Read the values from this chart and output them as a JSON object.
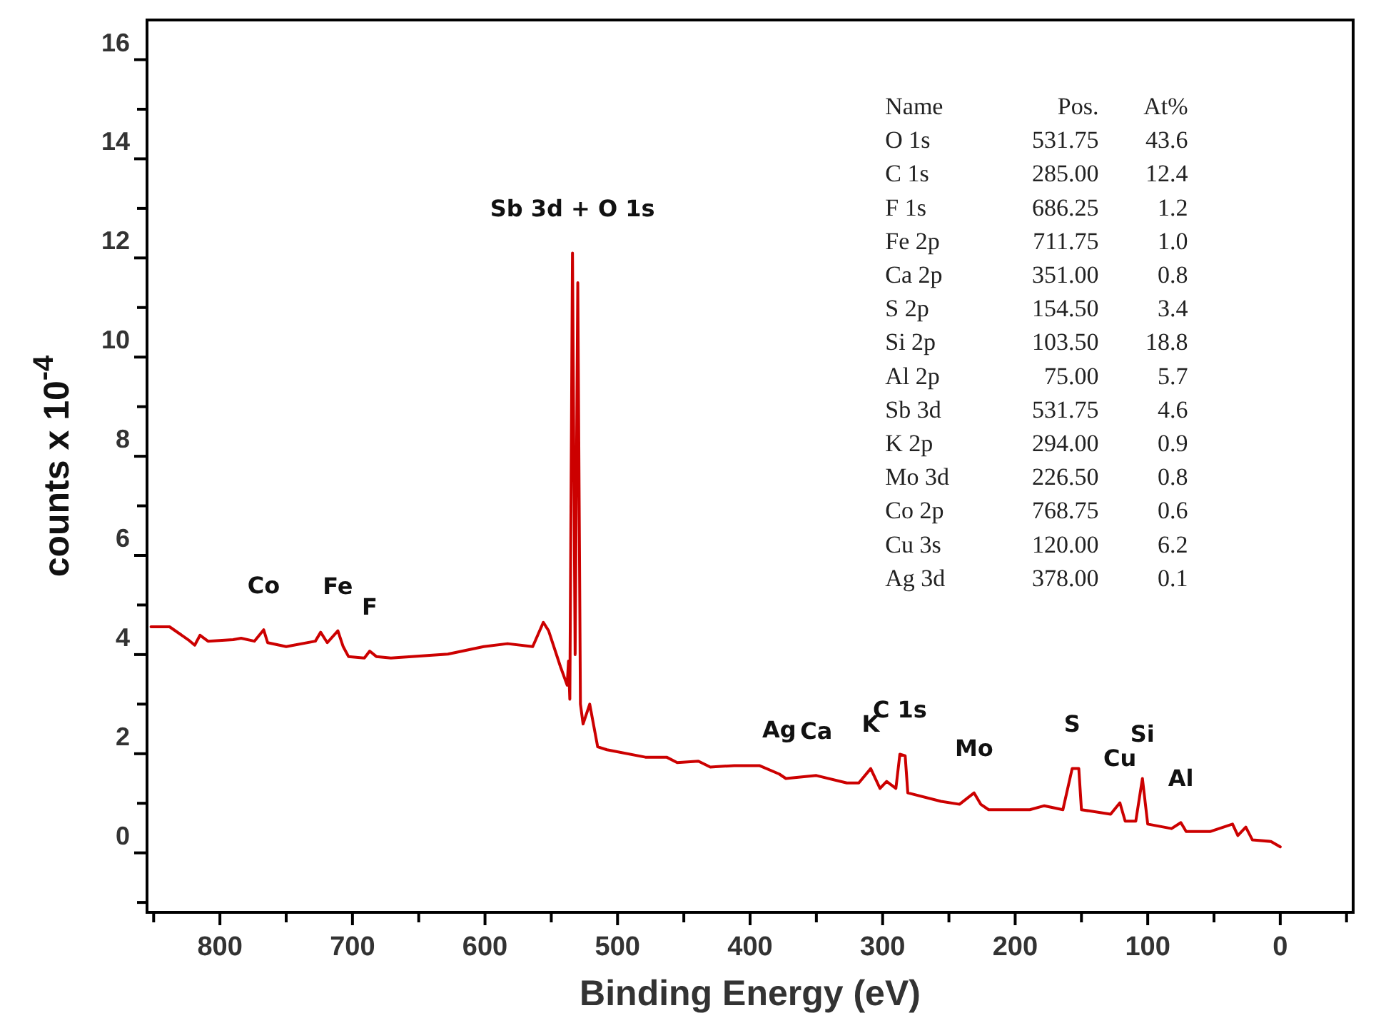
{
  "chart_data": {
    "type": "line",
    "xlabel": "Binding Energy (eV)",
    "ylabel": "counts x 10$^{-4}$",
    "xlim": [
      855,
      -55
    ],
    "ylim": [
      -1.2,
      16.8
    ],
    "xticks": [
      {
        "value": 850,
        "label": null
      },
      800,
      {
        "value": 750,
        "label": null
      },
      700,
      {
        "value": 650,
        "label": null
      },
      600,
      {
        "value": 550,
        "label": null
      },
      500,
      {
        "value": 450,
        "label": null
      },
      400,
      {
        "value": 350,
        "label": null
      },
      300,
      {
        "value": 250,
        "label": null
      },
      200,
      {
        "value": 150,
        "label": null
      },
      100,
      {
        "value": 50,
        "label": null
      },
      0,
      {
        "value": -50,
        "label": null
      }
    ],
    "yticks": [
      {
        "value": -1,
        "label": null
      },
      0,
      {
        "value": 1,
        "label": null
      },
      2,
      {
        "value": 3,
        "label": null
      },
      4,
      {
        "value": 5,
        "label": null
      },
      6,
      {
        "value": 7,
        "label": null
      },
      8,
      {
        "value": 9,
        "label": null
      },
      10,
      {
        "value": 11,
        "label": null
      },
      12,
      {
        "value": 13,
        "label": null
      },
      14,
      {
        "value": 15,
        "label": null
      },
      16
    ],
    "grid": false,
    "marker": "none",
    "line_style": "solid",
    "series": [
      {
        "color": "#cc0000",
        "x": [
          852,
          838,
          824,
          819,
          815,
          809,
          790,
          784,
          774,
          767,
          764,
          750,
          728,
          724,
          719,
          711,
          707,
          703,
          691,
          687,
          682,
          671,
          628,
          601,
          583,
          564,
          556,
          552,
          543,
          538,
          537,
          536,
          534,
          532,
          530,
          528,
          526,
          521,
          515,
          508,
          479,
          463,
          455,
          439,
          430,
          412,
          393,
          378,
          373,
          350,
          327,
          318,
          309,
          302,
          297,
          290,
          287,
          283,
          281,
          256,
          242,
          231,
          226,
          220,
          189,
          178,
          164,
          157,
          152,
          150,
          128,
          121,
          117,
          109,
          104,
          100,
          82,
          75,
          71,
          53,
          36,
          32,
          26,
          21,
          7,
          0
        ],
        "values": [
          4.56,
          4.56,
          4.3,
          4.19,
          4.39,
          4.27,
          4.3,
          4.33,
          4.27,
          4.5,
          4.24,
          4.16,
          4.27,
          4.45,
          4.24,
          4.48,
          4.16,
          3.96,
          3.93,
          4.07,
          3.96,
          3.93,
          4.01,
          4.16,
          4.22,
          4.16,
          4.65,
          4.48,
          3.75,
          3.38,
          3.87,
          3.1,
          12.1,
          4.0,
          11.5,
          3.0,
          2.6,
          3.0,
          2.14,
          2.08,
          1.93,
          1.93,
          1.82,
          1.85,
          1.73,
          1.76,
          1.76,
          1.59,
          1.5,
          1.56,
          1.41,
          1.41,
          1.7,
          1.3,
          1.44,
          1.3,
          1.99,
          1.96,
          1.21,
          1.04,
          0.98,
          1.21,
          0.98,
          0.87,
          0.87,
          0.95,
          0.87,
          1.7,
          1.7,
          0.87,
          0.78,
          1.01,
          0.64,
          0.64,
          1.5,
          0.58,
          0.49,
          0.61,
          0.43,
          0.43,
          0.58,
          0.35,
          0.52,
          0.26,
          0.23,
          0.12
        ]
      }
    ],
    "annotations": [
      {
        "text": "Sb 3d + O 1s",
        "x": 534,
        "y": 12.1
      },
      {
        "text": "Co",
        "x": 767,
        "y": 4.5
      },
      {
        "text": "Fe",
        "x": 711,
        "y": 4.48
      },
      {
        "text": "F",
        "x": 687,
        "y": 4.07
      },
      {
        "text": "Ag",
        "x": 378,
        "y": 1.59
      },
      {
        "text": "Ca",
        "x": 350,
        "y": 1.56
      },
      {
        "text": "K",
        "x": 309,
        "y": 1.7
      },
      {
        "text": "C 1s",
        "x": 287,
        "y": 1.99
      },
      {
        "text": "Mo",
        "x": 231,
        "y": 1.21
      },
      {
        "text": "S",
        "x": 157,
        "y": 1.7
      },
      {
        "text": "Si",
        "x": 104,
        "y": 1.5
      },
      {
        "text": "Cu",
        "x": 121,
        "y": 1.01
      },
      {
        "text": "Al",
        "x": 75,
        "y": 0.61
      },
      "Name",
      "Pos.",
      "At%",
      "O 1s",
      "531.75",
      "43.6",
      "C 1s",
      "285.00",
      "12.4",
      "F 1s",
      "686.25",
      "1.2",
      "Fe 2p",
      "711.75",
      "1.0",
      "Ca 2p",
      "351.00",
      "0.8",
      "S 2p",
      "154.50",
      "3.4",
      "Si 2p",
      "103.50",
      "18.8",
      "Al 2p",
      "75.00",
      "5.7",
      "Sb 3d",
      "531.75",
      "4.6",
      "K 2p",
      "294.00",
      "0.9",
      "Mo 3d",
      "226.50",
      "0.8",
      "Co 2p",
      "768.75",
      "0.6",
      "Cu 3s",
      "120.00",
      "6.2",
      "Ag 3d",
      "378.00",
      "0.1"
    ]
  }
}
